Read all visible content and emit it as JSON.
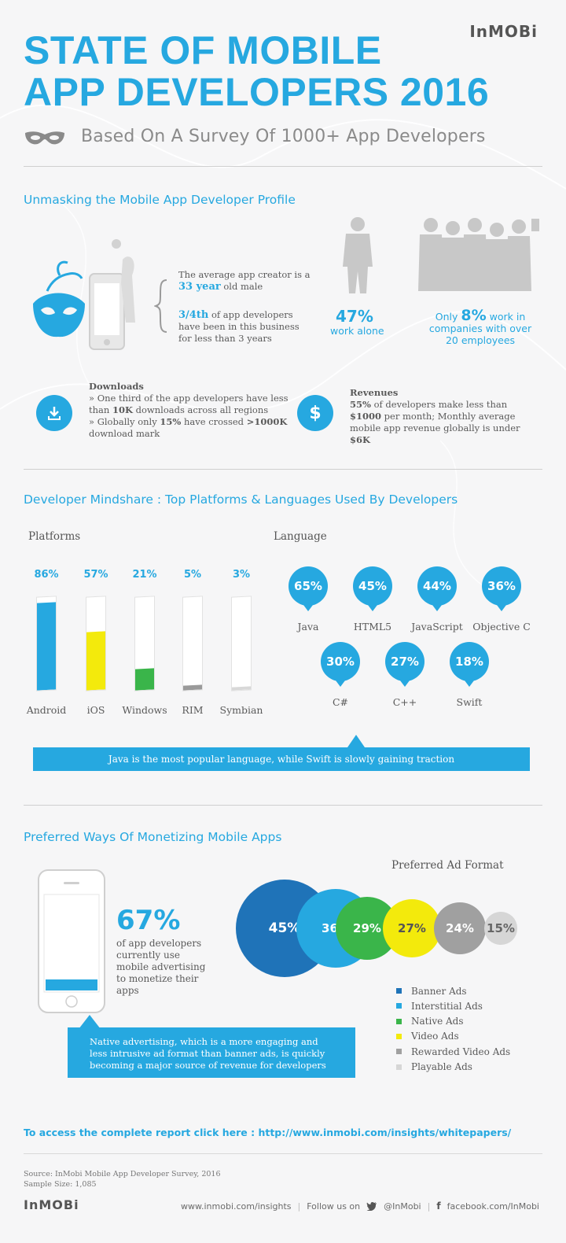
{
  "brand": {
    "logo_main": "InMOBi",
    "footer_logo": "InMOBi"
  },
  "header": {
    "title_line1": "STATE OF MOBILE",
    "title_line2": "APP DEVELOPERS 2016",
    "subtitle": "Based On A Survey Of 1000+ App Developers"
  },
  "profile": {
    "section_title": "Unmasking the Mobile App Developer Profile",
    "avg_text_pre": "The average app creator is a",
    "avg_age": "33 year",
    "avg_text_post": "old male",
    "tenure_bold": "3/4th",
    "tenure_rest": "of app developers have been in this business for less than 3 years",
    "alone_pct": "47%",
    "alone_label": "work alone",
    "companies_pre": "Only",
    "companies_pct": "8%",
    "companies_post": "work in companies with over 20 employees"
  },
  "downloads": {
    "heading": "Downloads",
    "line1_pre": "» One third of the app developers have less than ",
    "line1_bold": "10K",
    "line1_post": " downloads across all regions",
    "line2_pre": "» Globally only ",
    "line2_bold1": "15%",
    "line2_mid": " have crossed ",
    "line2_bold2": ">1000K",
    "line2_post": " download mark"
  },
  "revenues": {
    "heading": "Revenues",
    "bold1": "55%",
    "t1": " of developers make less than ",
    "bold2": "$1000",
    "t2": " per month; Monthly average mobile app revenue globally is under ",
    "bold3": "$6K"
  },
  "mindshare": {
    "section_title": "Developer Mindshare : Top Platforms & Languages Used By Developers",
    "platforms_label": "Platforms",
    "language_label": "Language",
    "banner": "Java is the most popular language, while Swift is slowly gaining traction"
  },
  "monetize": {
    "section_title": "Preferred Ways Of Monetizing Mobile Apps",
    "pct": "67%",
    "desc": "of app developers currently use mobile advertising to monetize their apps",
    "note": "Native advertising, which is a more engaging and less intrusive ad format than banner ads, is quickly becoming a major source of revenue for developers",
    "ad_format_title": "Preferred Ad Format"
  },
  "report_link": "To access the complete report click here : http://www.inmobi.com/insights/whitepapers/",
  "source": {
    "line1": "Source: InMobi Mobile App Developer Survey, 2016",
    "line2": "Sample Size: 1,085"
  },
  "footer": {
    "site": "www.inmobi.com/insights",
    "follow": "Follow us on",
    "twitter": "@InMobi",
    "facebook": "facebook.com/InMobi"
  },
  "colors": {
    "accent": "#26a8e0",
    "android": "#26a8e0",
    "ios": "#f3ea0c",
    "windows": "#3ab54a",
    "rim": "#9a9a9a",
    "symbian": "#d8d8d8"
  },
  "chart_data": [
    {
      "type": "bar",
      "title": "Platforms",
      "categories": [
        "Android",
        "iOS",
        "Windows",
        "RIM",
        "Symbian"
      ],
      "values": [
        86,
        57,
        21,
        5,
        3
      ],
      "labels": [
        "86%",
        "57%",
        "21%",
        "5%",
        "3%"
      ],
      "ylim": [
        0,
        100
      ]
    },
    {
      "type": "bar",
      "title": "Language",
      "categories": [
        "Java",
        "HTML5",
        "JavaScript",
        "Objective C",
        "C#",
        "C++",
        "Swift"
      ],
      "values": [
        65,
        45,
        44,
        36,
        30,
        27,
        18
      ],
      "labels": [
        "65%",
        "45%",
        "44%",
        "36%",
        "30%",
        "27%",
        "18%"
      ]
    },
    {
      "type": "bar",
      "title": "Preferred Ad Format",
      "categories": [
        "Banner Ads",
        "Interstitial Ads",
        "Native Ads",
        "Video Ads",
        "Rewarded Video Ads",
        "Playable Ads"
      ],
      "values": [
        45,
        36,
        29,
        27,
        24,
        15
      ],
      "labels": [
        "45%",
        "36%",
        "29%",
        "27%",
        "24%",
        "15%"
      ],
      "colors": [
        "#1f73b8",
        "#26a8e0",
        "#3ab54a",
        "#f3ea0c",
        "#a0a0a0",
        "#d6d6d6"
      ],
      "text_colors": [
        "#ffffff",
        "#ffffff",
        "#ffffff",
        "#555555",
        "#ffffff",
        "#666666"
      ]
    }
  ]
}
